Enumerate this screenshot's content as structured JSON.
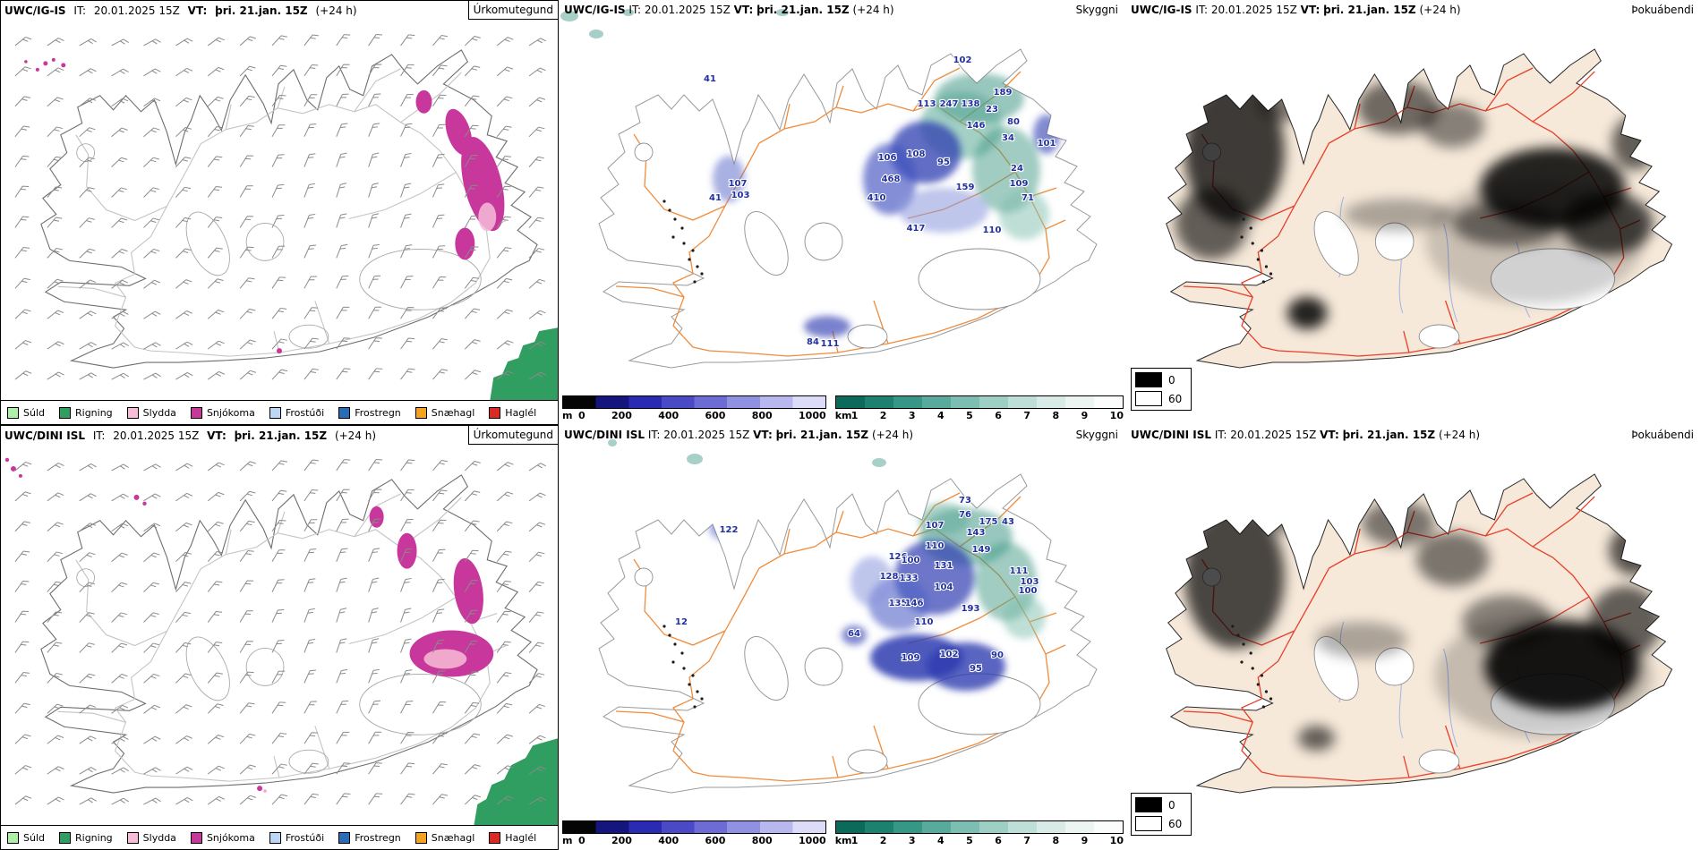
{
  "rows": [
    {
      "model": "UWC/IG-IS"
    },
    {
      "model": "UWC/DINI ISL"
    }
  ],
  "run": {
    "it_label": "IT:",
    "it_value": "20.01.2025 15Z",
    "vt_label": "VT:",
    "vt_value": "þri. 21.jan. 15Z",
    "lead": "(+24 h)"
  },
  "params": {
    "precip": "Úrkomutegund",
    "visibility": "Skyggni",
    "fog": "Þokuábendi"
  },
  "precip_legend": {
    "items": [
      {
        "label": "Súld",
        "color": "#aef0a8"
      },
      {
        "label": "Rigning",
        "color": "#2f9e60"
      },
      {
        "label": "Slydda",
        "color": "#f6bcd8"
      },
      {
        "label": "Snjókoma",
        "color": "#c8379c"
      },
      {
        "label": "Frostúði",
        "color": "#bcd6f6"
      },
      {
        "label": "Frostregn",
        "color": "#2a6db4"
      },
      {
        "label": "Snæhagl",
        "color": "#f5a21e"
      },
      {
        "label": "Haglél",
        "color": "#d92b21"
      }
    ]
  },
  "visibility_colorbar": {
    "m_label": "m",
    "m_ticks": [
      "0",
      "200",
      "400",
      "600",
      "800",
      "1000"
    ],
    "m_colors": [
      "#050505",
      "#15157e",
      "#2a2ab2",
      "#4a4ac6",
      "#6c6cd4",
      "#9191e2",
      "#b8b8ee",
      "#dcdcf8"
    ],
    "km_label": "km",
    "km_ticks": [
      "1",
      "2",
      "3",
      "4",
      "5",
      "6",
      "7",
      "8",
      "9",
      "10"
    ],
    "km_colors": [
      "#0b6a5a",
      "#1d8170",
      "#379786",
      "#58ab9c",
      "#7cbfb2",
      "#9ecfc5",
      "#bedfd8",
      "#d8ebe6",
      "#ecf5f2",
      "#fafdfc"
    ]
  },
  "fog_legend": {
    "items": [
      {
        "label": "0",
        "color": "#000000"
      },
      {
        "label": "60",
        "color": "#ffffff"
      }
    ]
  },
  "vis_values_row1": [
    [
      41,
      169,
      91
    ],
    [
      102,
      451,
      70
    ],
    [
      189,
      496,
      106
    ],
    [
      113,
      411,
      119
    ],
    [
      247,
      436,
      119
    ],
    [
      138,
      460,
      119
    ],
    [
      23,
      484,
      125
    ],
    [
      80,
      508,
      139
    ],
    [
      146,
      466,
      143
    ],
    [
      34,
      502,
      157
    ],
    [
      101,
      545,
      163
    ],
    [
      106,
      367,
      179
    ],
    [
      108,
      399,
      175
    ],
    [
      95,
      430,
      184
    ],
    [
      468,
      371,
      203
    ],
    [
      159,
      454,
      212
    ],
    [
      24,
      512,
      191
    ],
    [
      109,
      514,
      208
    ],
    [
      71,
      524,
      224
    ],
    [
      410,
      355,
      224
    ],
    [
      417,
      399,
      258
    ],
    [
      110,
      484,
      260
    ],
    [
      107,
      200,
      208
    ],
    [
      103,
      203,
      221
    ],
    [
      41,
      175,
      224
    ],
    [
      84,
      284,
      385
    ],
    [
      111,
      303,
      387
    ]
  ],
  "vis_values_row2": [
    [
      122,
      190,
      120
    ],
    [
      73,
      454,
      87
    ],
    [
      76,
      454,
      103
    ],
    [
      107,
      420,
      115
    ],
    [
      175,
      480,
      111
    ],
    [
      143,
      466,
      123
    ],
    [
      43,
      502,
      111
    ],
    [
      110,
      420,
      138
    ],
    [
      126,
      379,
      150
    ],
    [
      100,
      393,
      154
    ],
    [
      131,
      430,
      160
    ],
    [
      149,
      472,
      142
    ],
    [
      128,
      369,
      172
    ],
    [
      133,
      391,
      174
    ],
    [
      104,
      430,
      184
    ],
    [
      111,
      514,
      166
    ],
    [
      103,
      526,
      178
    ],
    [
      135,
      379,
      202
    ],
    [
      146,
      397,
      202
    ],
    [
      193,
      460,
      208
    ],
    [
      110,
      408,
      223
    ],
    [
      100,
      524,
      188
    ],
    [
      64,
      330,
      236
    ],
    [
      109,
      393,
      263
    ],
    [
      102,
      436,
      259
    ],
    [
      95,
      466,
      275
    ],
    [
      90,
      490,
      260
    ],
    [
      12,
      137,
      223
    ]
  ],
  "colors": {
    "snow": "#c8379c",
    "sleet_pink": "#f6bcd8",
    "rain_sea_green": "#2f9e60",
    "vis_roads": "#f08c3c",
    "fog_roads": "#e8402a",
    "fog_land": "#f6e9da",
    "vis_number": "#21309e"
  }
}
